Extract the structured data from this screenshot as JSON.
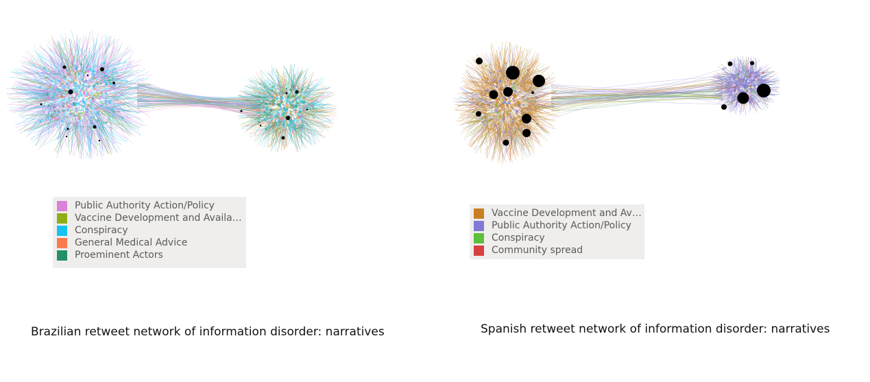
{
  "networks": [
    {
      "caption": "Brazilian retweet network of information disorder: narratives",
      "legend": [
        {
          "label": "Public Authority Action/Policy",
          "color": "#d982d8"
        },
        {
          "label": "Vaccine Development and Availabil...",
          "color": "#8fae16"
        },
        {
          "label": "Conspiracy",
          "color": "#16c3f2"
        },
        {
          "label": "General Medical Advice",
          "color": "#fb7b4f"
        },
        {
          "label": "Proeminent Actors",
          "color": "#23906a"
        }
      ]
    },
    {
      "caption": "Spanish retweet network of information disorder: narratives",
      "legend": [
        {
          "label": "Vaccine Development and Ava...",
          "color": "#c87f22"
        },
        {
          "label": "Public Authority Action/Policy",
          "color": "#8279d5"
        },
        {
          "label": "Conspiracy",
          "color": "#5cc03a"
        },
        {
          "label": "Community spread",
          "color": "#d64040"
        }
      ]
    }
  ]
}
